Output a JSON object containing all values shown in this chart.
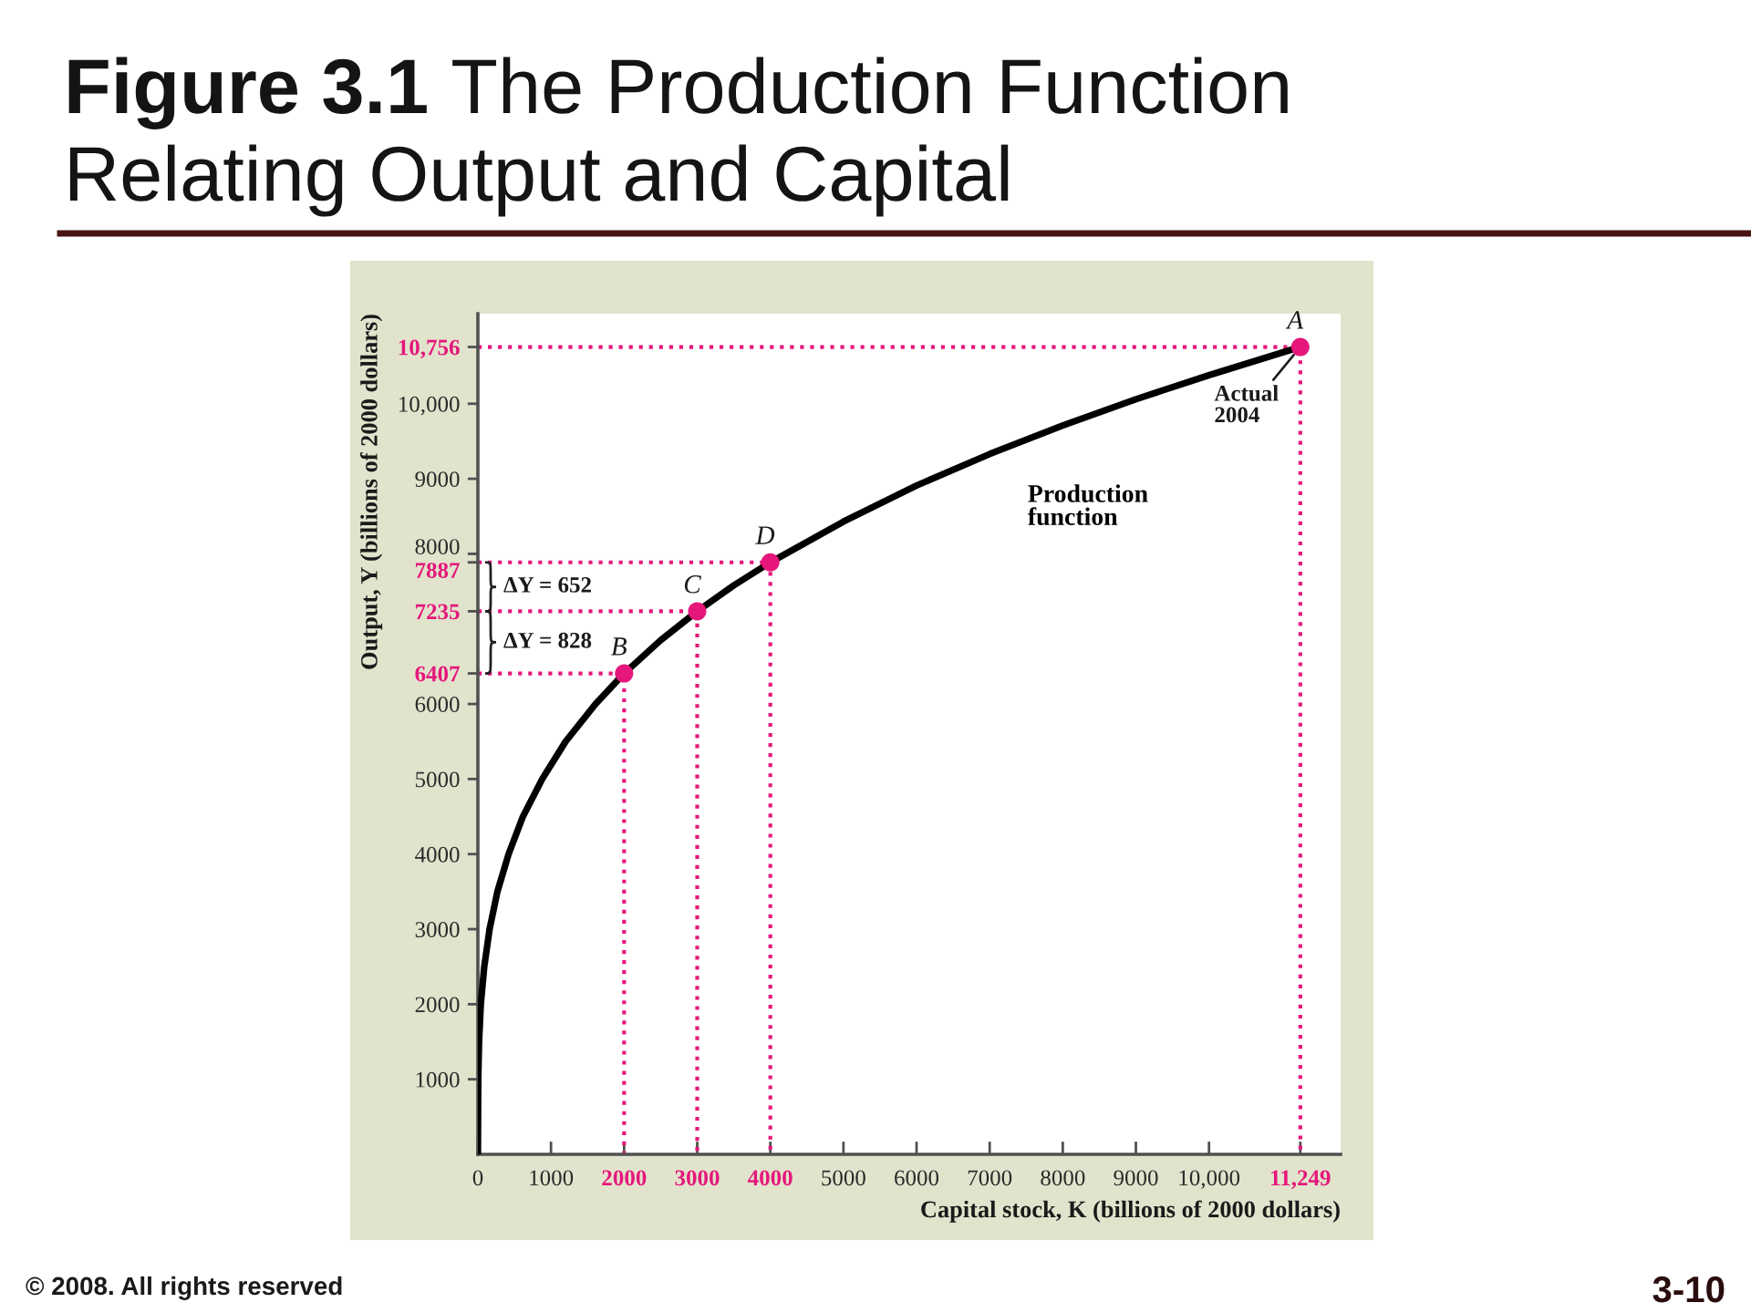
{
  "chart_data": {
    "type": "line",
    "title": "Figure 3.1 The Production Function\nRelating Output and Capital",
    "xlabel": "Capital stock, K (billions of 2000 dollars)",
    "ylabel": "Output, Y (billions of 2000 dollars)",
    "xlim": [
      0,
      11800
    ],
    "ylim": [
      0,
      11200
    ],
    "xticks": [
      0,
      1000,
      2000,
      3000,
      4000,
      5000,
      6000,
      7000,
      8000,
      9000,
      {
        "value": 10000,
        "label": "10,000"
      },
      {
        "value": 11249,
        "label": "11,249"
      }
    ],
    "yticks": [
      1000,
      2000,
      3000,
      4000,
      5000,
      6000,
      6407,
      7235,
      7887,
      8000,
      9000,
      {
        "value": 10000,
        "label": "10,000"
      },
      {
        "value": 10756,
        "label": "10,756"
      }
    ],
    "series": [
      {
        "name": "Production function",
        "color": "#000000",
        "line_style": "solid",
        "x": [
          0,
          5,
          16,
          40,
          87,
          160,
          267,
          420,
          616,
          880,
          1200,
          1610,
          2000,
          2500,
          3000,
          3500,
          4000,
          5000,
          6000,
          7000,
          8000,
          9000,
          10000,
          11249
        ],
        "values": [
          0,
          1000,
          1500,
          2000,
          2500,
          3000,
          3500,
          4000,
          4500,
          5000,
          5500,
          6000,
          6407,
          6850,
          7235,
          7580,
          7887,
          8430,
          8910,
          9330,
          9710,
          10060,
          10380,
          10756
        ]
      },
      {
        "color": "#e5177b",
        "line_style": "dotted",
        "x": [
          0,
          2000,
          2000
        ],
        "values": [
          6407,
          6407,
          0
        ]
      },
      {
        "color": "#e5177b",
        "line_style": "dotted",
        "x": [
          0,
          3000,
          3000
        ],
        "values": [
          7235,
          7235,
          0
        ]
      },
      {
        "color": "#e5177b",
        "line_style": "dotted",
        "x": [
          0,
          4000,
          4000
        ],
        "values": [
          7887,
          7887,
          0
        ]
      },
      {
        "color": "#e5177b",
        "line_style": "dotted",
        "x": [
          0,
          11249,
          11249
        ],
        "values": [
          10756,
          10756,
          0
        ]
      },
      {
        "type": "scatter",
        "color": "#e5177b",
        "marker": "circle",
        "x": [
          2000,
          3000,
          4000,
          11249
        ],
        "values": [
          6407,
          7235,
          7887,
          10756
        ]
      }
    ],
    "annotations": [
      {
        "text": "A",
        "x": 11249,
        "y": 10756
      },
      {
        "text": "Actual\n2004",
        "x": 11249,
        "y": 10756
      },
      {
        "text": "B",
        "x": 2000,
        "y": 6407
      },
      {
        "text": "C",
        "x": 3000,
        "y": 7235
      },
      {
        "text": "D",
        "x": 4000,
        "y": 7887
      },
      "ΔY = 652",
      "ΔY = 828",
      "© 2008. All rights reserved",
      "3-10"
    ]
  }
}
